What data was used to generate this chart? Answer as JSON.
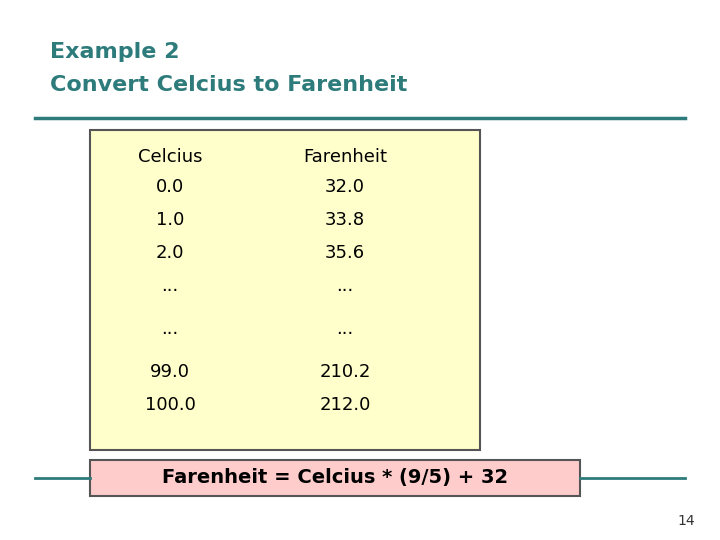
{
  "title_line1": "Example 2",
  "title_line2": "Convert Celcius to Farenheit",
  "title_color": "#2E7B7B",
  "bg_color": "#FFFFFF",
  "outer_border_color": "#4A9090",
  "table_bg_color": "#FFFFCC",
  "table_border_color": "#555555",
  "formula_bg_color": "#FFCCCC",
  "formula_border_color": "#555555",
  "formula_text": "Farenheit = Celcius * (9/5) + 32",
  "col1_header": "Celcius",
  "col2_header": "Farenheit",
  "col1_data": [
    "0.0",
    "1.0",
    "2.0",
    "...",
    "...",
    "99.0",
    "100.0"
  ],
  "col2_data": [
    "32.0",
    "33.8",
    "35.6",
    "...",
    "...",
    "210.2",
    "212.0"
  ],
  "page_number": "14",
  "divider_color": "#2E7B7B",
  "table_text_color": "#000000",
  "title_fontsize": 16,
  "table_fontsize": 13,
  "formula_fontsize": 14
}
